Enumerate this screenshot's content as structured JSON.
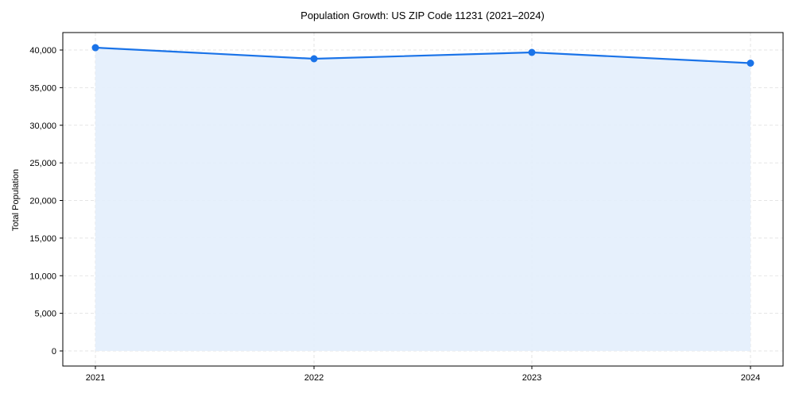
{
  "chart_data": {
    "type": "area",
    "title": "Population Growth: US ZIP Code 11231 (2021–2024)",
    "xlabel": "",
    "ylabel": "Total Population",
    "categories": [
      "2021",
      "2022",
      "2023",
      "2024"
    ],
    "series": [
      {
        "name": "Total Population",
        "values": [
          40316,
          38839,
          39683,
          38259
        ],
        "color": "#1a73e8",
        "fill": "#e3eefc"
      }
    ],
    "yticks": [
      0,
      5000,
      10000,
      15000,
      20000,
      25000,
      30000,
      35000,
      40000
    ],
    "ytick_labels": [
      "0",
      "5,000",
      "10,000",
      "15,000",
      "20,000",
      "25,000",
      "30,000",
      "35,000",
      "40,000"
    ],
    "ylim": [
      -2000,
      42100
    ],
    "grid": true,
    "legend": "none"
  }
}
